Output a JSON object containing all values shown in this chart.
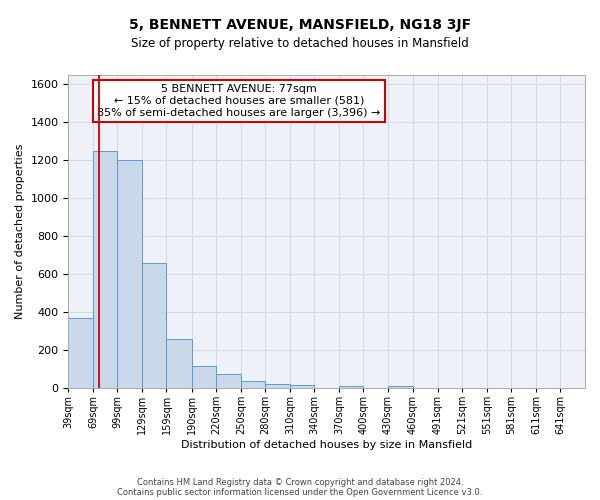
{
  "title": "5, BENNETT AVENUE, MANSFIELD, NG18 3JF",
  "subtitle": "Size of property relative to detached houses in Mansfield",
  "xlabel": "Distribution of detached houses by size in Mansfield",
  "ylabel": "Number of detached properties",
  "annotation_title": "5 BENNETT AVENUE: 77sqm",
  "annotation_line1": "← 15% of detached houses are smaller (581)",
  "annotation_line2": "85% of semi-detached houses are larger (3,396) →",
  "bar_left_edges": [
    39,
    69,
    99,
    129,
    159,
    190,
    220,
    250,
    280,
    310,
    340,
    370,
    400,
    430,
    460,
    491,
    521,
    551,
    581,
    611
  ],
  "bar_widths": [
    30,
    30,
    30,
    30,
    31,
    30,
    30,
    30,
    30,
    30,
    30,
    30,
    30,
    30,
    31,
    30,
    30,
    30,
    30,
    30
  ],
  "bar_heights": [
    370,
    1250,
    1200,
    660,
    260,
    115,
    75,
    40,
    20,
    15,
    0,
    10,
    0,
    10,
    0,
    0,
    0,
    0,
    0,
    0
  ],
  "bar_color": "#c9d9ea",
  "bar_edge_color": "#5b9bd5",
  "grid_color": "#d0d8e8",
  "background_color": "#eef2f8",
  "vline_x": 77,
  "vline_color": "#cc0000",
  "ylim": [
    0,
    1650
  ],
  "yticks": [
    0,
    200,
    400,
    600,
    800,
    1000,
    1200,
    1400,
    1600
  ],
  "x_tick_labels": [
    "39sqm",
    "69sqm",
    "99sqm",
    "129sqm",
    "159sqm",
    "190sqm",
    "220sqm",
    "250sqm",
    "280sqm",
    "310sqm",
    "340sqm",
    "370sqm",
    "400sqm",
    "430sqm",
    "460sqm",
    "491sqm",
    "521sqm",
    "551sqm",
    "581sqm",
    "611sqm",
    "641sqm"
  ],
  "x_tick_positions": [
    39,
    69,
    99,
    129,
    159,
    190,
    220,
    250,
    280,
    310,
    340,
    370,
    400,
    430,
    460,
    491,
    521,
    551,
    581,
    611,
    641
  ],
  "xlim": [
    39,
    671
  ],
  "footer_line1": "Contains HM Land Registry data © Crown copyright and database right 2024.",
  "footer_line2": "Contains public sector information licensed under the Open Government Licence v3.0.",
  "title_fontsize": 10,
  "subtitle_fontsize": 8.5,
  "ylabel_fontsize": 8,
  "xlabel_fontsize": 8,
  "ytick_fontsize": 8,
  "xtick_fontsize": 7,
  "annot_fontsize": 8,
  "footer_fontsize": 6
}
